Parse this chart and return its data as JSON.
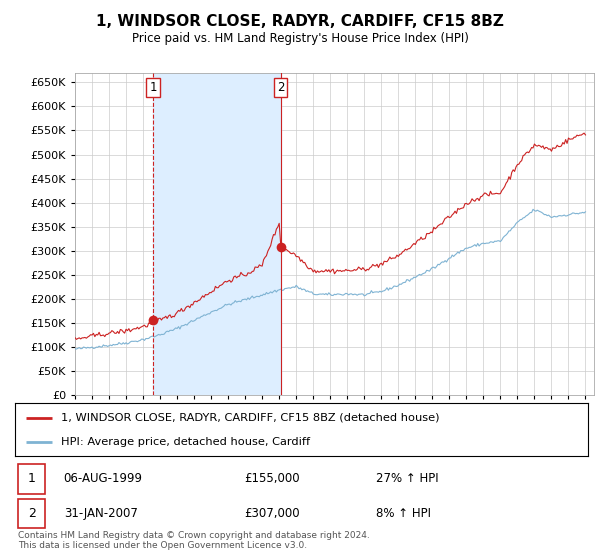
{
  "title": "1, WINDSOR CLOSE, RADYR, CARDIFF, CF15 8BZ",
  "subtitle": "Price paid vs. HM Land Registry's House Price Index (HPI)",
  "legend_line1": "1, WINDSOR CLOSE, RADYR, CARDIFF, CF15 8BZ (detached house)",
  "legend_line2": "HPI: Average price, detached house, Cardiff",
  "annotation1_label": "1",
  "annotation1_date": "06-AUG-1999",
  "annotation1_price": "£155,000",
  "annotation1_hpi": "27% ↑ HPI",
  "annotation2_label": "2",
  "annotation2_date": "31-JAN-2007",
  "annotation2_price": "£307,000",
  "annotation2_hpi": "8% ↑ HPI",
  "footer": "Contains HM Land Registry data © Crown copyright and database right 2024.\nThis data is licensed under the Open Government Licence v3.0.",
  "hpi_color": "#7fb3d3",
  "price_color": "#cc2222",
  "marker_color": "#cc2222",
  "vline1_color": "#cc2222",
  "vline2_color": "#cc2222",
  "shade_between_color": "#ddeeff",
  "ylim": [
    0,
    670000
  ],
  "yticks": [
    0,
    50000,
    100000,
    150000,
    200000,
    250000,
    300000,
    350000,
    400000,
    450000,
    500000,
    550000,
    600000,
    650000
  ],
  "background_color": "#ffffff",
  "grid_color": "#cccccc",
  "sale1_x": 1999.58,
  "sale1_y": 155000,
  "sale2_x": 2007.08,
  "sale2_y": 307000,
  "vline1_x": 1999.58,
  "vline2_x": 2007.08,
  "xlim_left": 1995.0,
  "xlim_right": 2025.5
}
